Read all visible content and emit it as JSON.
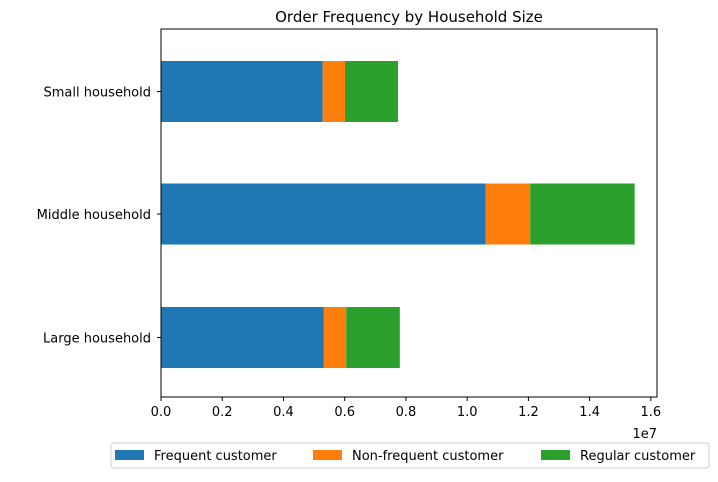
{
  "chart_data": {
    "type": "bar",
    "orientation": "horizontal",
    "stacked": true,
    "title": "Order Frequency by Household Size",
    "xlabel": "",
    "ylabel": "",
    "x_offset_label": "1e7",
    "xlim": [
      0,
      16200000
    ],
    "x_ticks": [
      0,
      2000000,
      4000000,
      6000000,
      8000000,
      10000000,
      12000000,
      14000000,
      16000000
    ],
    "x_tick_labels": [
      "0.0",
      "0.2",
      "0.4",
      "0.6",
      "0.8",
      "1.0",
      "1.2",
      "1.4",
      "1.6"
    ],
    "categories": [
      "Small household",
      "Middle household",
      "Large household"
    ],
    "series": [
      {
        "name": "Frequent customer",
        "color": "#1f77b4",
        "values": [
          5280000,
          10600000,
          5320000
        ]
      },
      {
        "name": "Non-frequent customer",
        "color": "#ff7f0e",
        "values": [
          730000,
          1460000,
          730000
        ]
      },
      {
        "name": "Regular customer",
        "color": "#2ca02c",
        "values": [
          1730000,
          3410000,
          1750000
        ]
      }
    ],
    "legend_position": "bottom-center",
    "grid": false
  }
}
